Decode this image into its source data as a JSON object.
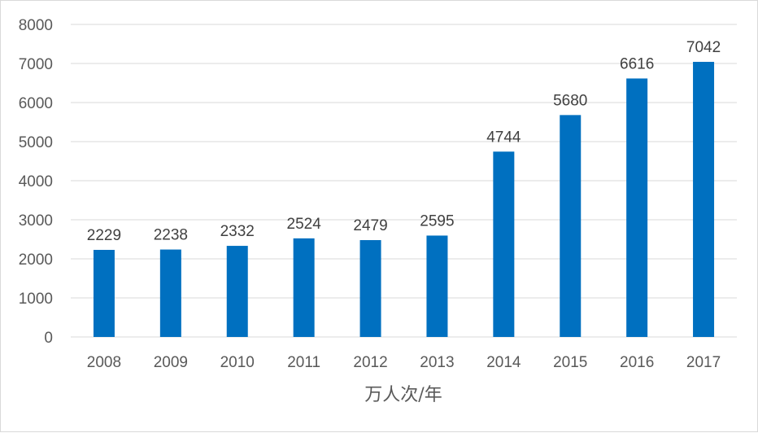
{
  "chart_data": {
    "type": "bar",
    "categories": [
      "2008",
      "2009",
      "2010",
      "2011",
      "2012",
      "2013",
      "2014",
      "2015",
      "2016",
      "2017"
    ],
    "values": [
      2229,
      2238,
      2332,
      2524,
      2479,
      2595,
      4744,
      5680,
      6616,
      7042
    ],
    "xlabel": "万人次/年",
    "ylabel": "",
    "ylim": [
      0,
      8000
    ],
    "yticks": [
      0,
      1000,
      2000,
      3000,
      4000,
      5000,
      6000,
      7000,
      8000
    ],
    "grid": true,
    "data_labels": true,
    "bar_color": "#0070C0",
    "grid_color": "#d9d9d9"
  }
}
